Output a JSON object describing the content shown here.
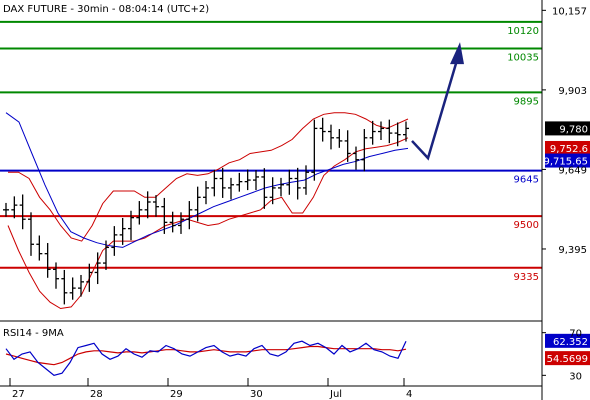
{
  "header": {
    "main": "DAX FUTURE - 30min - 08:04:14 (UTC+2)",
    "rsi": "RSI14 - 9MA"
  },
  "colors": {
    "support": "#0000c8",
    "resistance_red": "#cc0000",
    "target_green": "#008800",
    "ma": "#0000c8",
    "bands": "#cc0000",
    "candles": "#000000",
    "rsi_ma": "#cc0000",
    "rsi": "#0000c8",
    "last_badge": "#000000",
    "band_badge": "#cc0000",
    "ma_badge": "#0000c8"
  },
  "chart_data": [
    {
      "type": "line",
      "panel": "price",
      "y_ticks": [
        "10,157",
        "9,903",
        "9,649",
        "9,395"
      ],
      "y_tick_values": [
        10157,
        9903,
        9649,
        9395
      ],
      "ylim": [
        9165,
        10190
      ],
      "x_ticks": [
        "27",
        "28",
        "29",
        "30",
        "Jul",
        "4"
      ],
      "levels": [
        {
          "label": "10120",
          "value": 10120,
          "color": "green"
        },
        {
          "label": "10035",
          "value": 10035,
          "color": "green"
        },
        {
          "label": "9895",
          "value": 9895,
          "color": "green"
        },
        {
          "label": "9645",
          "value": 9645,
          "color": "blue"
        },
        {
          "label": "9500",
          "value": 9500,
          "color": "red"
        },
        {
          "label": "9335",
          "value": 9335,
          "color": "red"
        }
      ],
      "badges": [
        {
          "label": "9,780",
          "value": 9780,
          "kind": "last"
        },
        {
          "label": "9,752.6",
          "value": 9752.6,
          "kind": "band"
        },
        {
          "label": "9,715.65",
          "value": 9715.65,
          "kind": "ma"
        }
      ],
      "series": [
        {
          "kind": "ohlc_close",
          "values": [
            9520,
            9535,
            9490,
            9410,
            9380,
            9330,
            9300,
            9255,
            9270,
            9290,
            9320,
            9350,
            9400,
            9440,
            9460,
            9495,
            9520,
            9545,
            9530,
            9480,
            9470,
            9490,
            9520,
            9560,
            9590,
            9620,
            9590,
            9600,
            9610,
            9615,
            9625,
            9560,
            9590,
            9600,
            9620,
            9590,
            9640,
            9780,
            9770,
            9750,
            9740,
            9700,
            9680,
            9750,
            9770,
            9780,
            9765,
            9760,
            9780
          ]
        },
        {
          "kind": "upper_band",
          "values": [
            9640,
            9640,
            9620,
            9560,
            9520,
            9470,
            9430,
            9420,
            9470,
            9540,
            9580,
            9580,
            9580,
            9560,
            9560,
            9590,
            9620,
            9635,
            9630,
            9635,
            9650,
            9670,
            9680,
            9700,
            9705,
            9710,
            9725,
            9745,
            9780,
            9810,
            9825,
            9830,
            9830,
            9825,
            9810,
            9790,
            9780,
            9795,
            9810
          ]
        },
        {
          "kind": "lower_band",
          "values": [
            9470,
            9390,
            9320,
            9260,
            9225,
            9205,
            9210,
            9250,
            9320,
            9390,
            9420,
            9420,
            9420,
            9430,
            9450,
            9470,
            9480,
            9490,
            9480,
            9470,
            9475,
            9490,
            9500,
            9510,
            9520,
            9550,
            9560,
            9510,
            9510,
            9560,
            9630,
            9660,
            9680,
            9705,
            9715,
            9720,
            9725,
            9735,
            9750
          ]
        },
        {
          "kind": "moving_average",
          "values": [
            9830,
            9800,
            9700,
            9600,
            9510,
            9450,
            9430,
            9415,
            9405,
            9400,
            9420,
            9440,
            9455,
            9470,
            9490,
            9510,
            9530,
            9545,
            9560,
            9575,
            9590,
            9600,
            9608,
            9615,
            9635,
            9650,
            9665,
            9675,
            9690,
            9700,
            9710,
            9716
          ]
        }
      ],
      "forecast_arrow": {
        "from": [
          9740,
          9735
        ],
        "to": [
          9790,
          10030
        ]
      }
    },
    {
      "type": "line",
      "panel": "rsi",
      "y_ticks": [
        "70",
        "30"
      ],
      "ylim": [
        20,
        80
      ],
      "x_ticks": [
        "27",
        "28",
        "29",
        "30",
        "Jul",
        "4"
      ],
      "badges": [
        {
          "label": "62.352",
          "value": 62.352,
          "kind": "rsi"
        },
        {
          "label": "54.5699",
          "value": 54.5699,
          "kind": "rsi_ma"
        }
      ],
      "series": [
        {
          "name": "RSI14",
          "values": [
            55,
            45,
            50,
            52,
            42,
            36,
            30,
            32,
            42,
            56,
            58,
            60,
            50,
            45,
            48,
            55,
            50,
            47,
            53,
            52,
            58,
            55,
            50,
            48,
            52,
            56,
            58,
            52,
            48,
            50,
            48,
            55,
            58,
            50,
            48,
            52,
            60,
            62,
            58,
            60,
            56,
            50,
            58,
            52,
            55,
            60,
            54,
            52,
            48,
            46,
            62
          ]
        },
        {
          "name": "MA",
          "values": [
            50,
            48,
            46,
            44,
            42,
            41,
            40,
            42,
            46,
            50,
            52,
            53,
            53,
            52,
            51,
            52,
            52,
            51,
            52,
            53,
            54,
            54,
            53,
            52,
            52,
            53,
            54,
            53,
            52,
            52,
            52,
            53,
            54,
            54,
            54,
            54,
            55,
            56,
            57,
            57,
            56,
            55,
            55,
            55,
            55,
            55,
            55,
            54,
            54,
            53,
            54.5
          ]
        }
      ]
    }
  ]
}
